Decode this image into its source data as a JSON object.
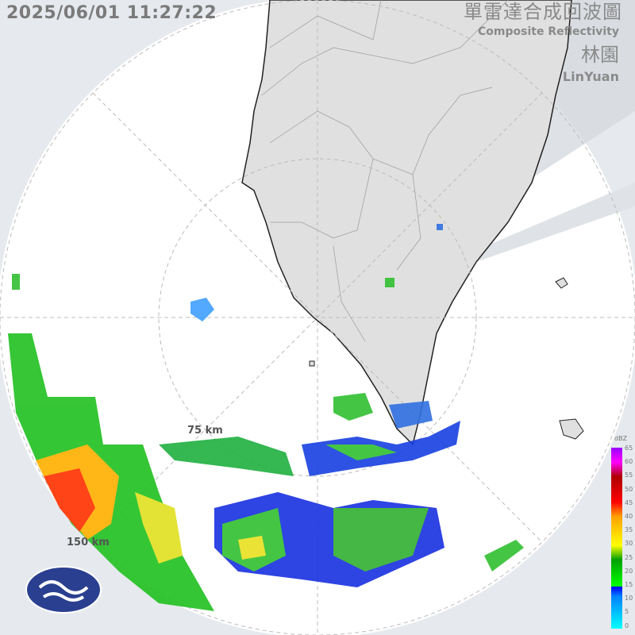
{
  "header": {
    "timestamp": "2025/06/01 11:27:22",
    "title_zh": "單雷達合成回波圖",
    "title_en": "Composite Reflectivity",
    "station_zh": "林園",
    "station_en": "LinYuan"
  },
  "range_rings": [
    {
      "label": "75 km"
    },
    {
      "label": "150 km"
    }
  ],
  "legend": {
    "unit": "dBZ",
    "ticks": [
      "65",
      "60",
      "55",
      "50",
      "45",
      "40",
      "35",
      "30",
      "25",
      "20",
      "15",
      "10",
      "5",
      "0"
    ]
  },
  "colors": {
    "land": "#e0e0e0",
    "sea": "#ffffff",
    "outside": "#e6eaee",
    "blocked": "#d4d8dc"
  },
  "logo": {
    "name": "cwa-logo-icon"
  }
}
